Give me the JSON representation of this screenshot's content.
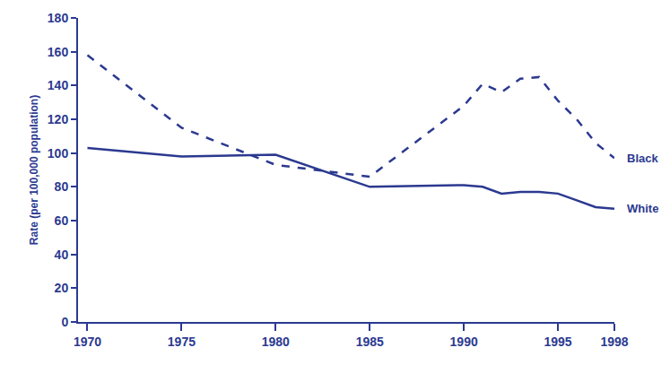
{
  "chart_data": {
    "type": "line",
    "y_label": "Rate (per 100,000 population)",
    "x": [
      1970,
      1975,
      1980,
      1985,
      1990,
      1991,
      1992,
      1993,
      1994,
      1995,
      1996,
      1997,
      1998
    ],
    "series": [
      {
        "name": "Black",
        "color": "#2b3990",
        "line_style": "dashed",
        "values": [
          158,
          115,
          93,
          86,
          128,
          141,
          136,
          144,
          145,
          131,
          120,
          106,
          97
        ]
      },
      {
        "name": "White",
        "color": "#2b3990",
        "line_style": "solid",
        "values": [
          103,
          98,
          99,
          80,
          81,
          80,
          76,
          77,
          77,
          76,
          72,
          68,
          67
        ]
      }
    ],
    "xlim": [
      1969.5,
      1998
    ],
    "xticks": [
      1970,
      1975,
      1980,
      1985,
      1990,
      1995,
      1998
    ],
    "ylim": [
      0,
      180
    ],
    "yticks": [
      0,
      20,
      40,
      60,
      80,
      100,
      120,
      140,
      160,
      180
    ],
    "grid": false
  }
}
